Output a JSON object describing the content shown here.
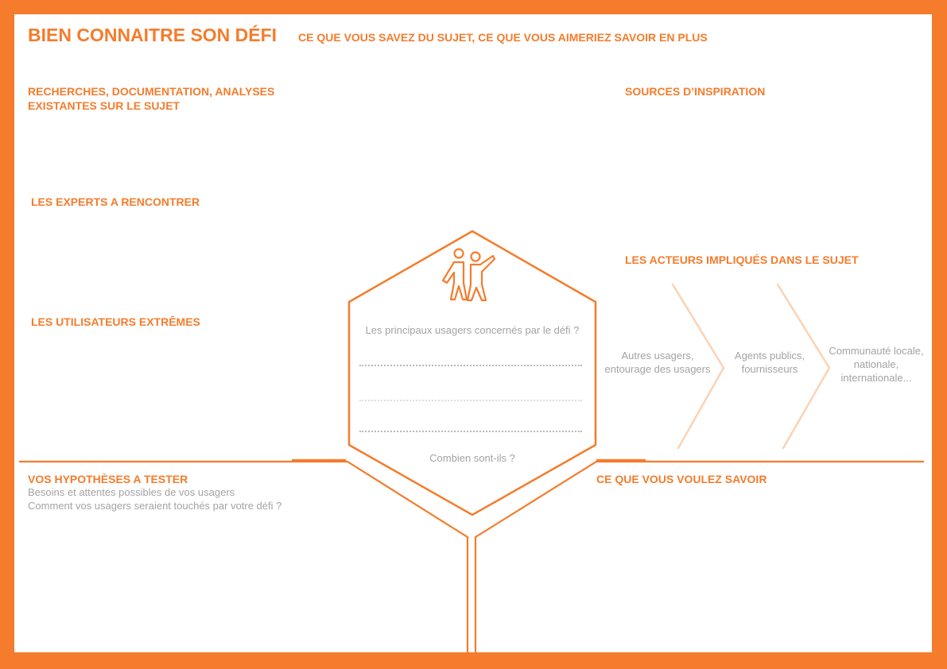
{
  "header": {
    "title": "BIEN CONNAITRE SON DÉFI",
    "subtitle": "CE QUE VOUS SAVEZ DU SUJET, CE QUE VOUS AIMERIEZ SAVOIR EN PLUS"
  },
  "sections": {
    "research": {
      "line1": "RECHERCHES, DOCUMENTATION, ANALYSES",
      "line2": "EXISTANTES SUR LE SUJET"
    },
    "inspiration": "SOURCES D’INSPIRATION",
    "experts": "LES EXPERTS A RENCONTRER",
    "actors": "LES ACTEURS IMPLIQUÉS DANS LE SUJET",
    "extreme_users": "LES UTILISATEURS EXTRÊMES",
    "hypotheses": {
      "title": "VOS HYPOTHÈSES A TESTER",
      "line1": "Besoins et attentes possibles de vos usagers",
      "line2": "Comment vos usagers seraient touchés par votre défi ?"
    },
    "want_to_know": "CE QUE VOUS VOULEZ SAVOIR"
  },
  "hexagon": {
    "question": "Les principaux usagers concernés par le défi ?",
    "count_question": "Combien sont-ils ?"
  },
  "actor_steps": [
    {
      "line1": "Autres usagers,",
      "line2": "entourage des usagers"
    },
    {
      "line1": "Agents publics,",
      "line2": "fournisseurs"
    },
    {
      "line1": "Communauté locale,",
      "line2": "nationale,",
      "line3": "internationale..."
    }
  ],
  "colors": {
    "accent": "#f47c2c",
    "chevron": "#fbd2b6",
    "muted_text": "#a3a3a3"
  },
  "icons": {
    "center": "two-people-icon"
  }
}
